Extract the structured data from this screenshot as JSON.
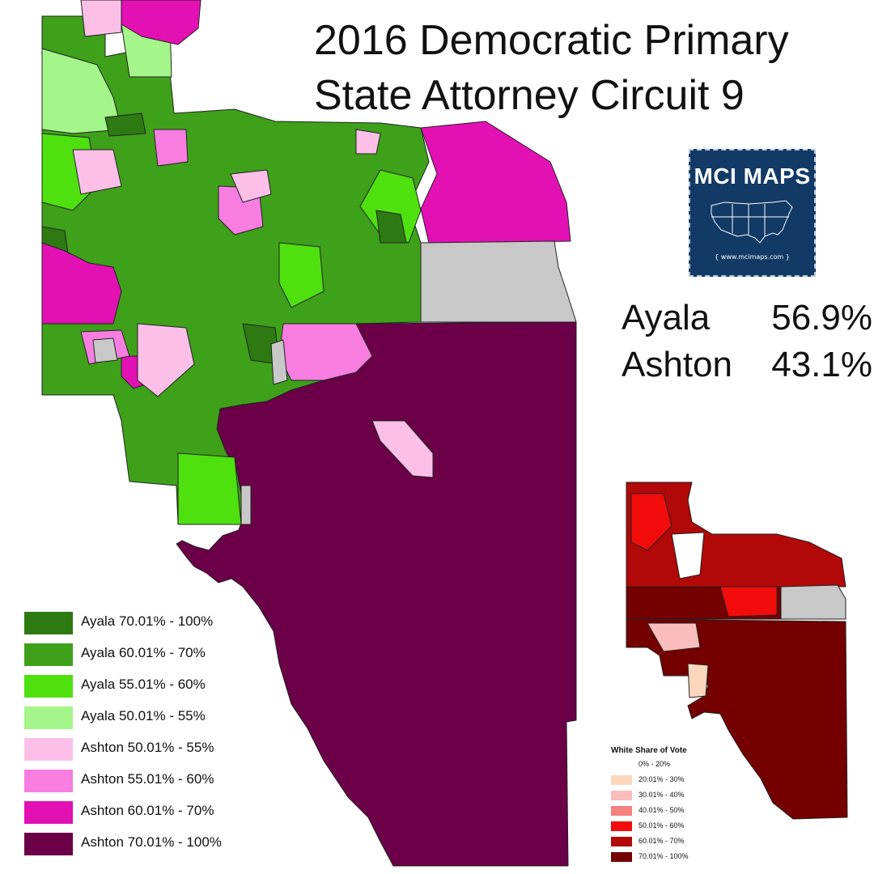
{
  "title": {
    "line1": "2016 Democratic Primary",
    "line2": "State Attorney Circuit 9"
  },
  "logo": {
    "name": "MCI MAPS",
    "url": "www.mcimaps.com",
    "icon": "usa-map-icon"
  },
  "results": [
    {
      "name": "Ayala",
      "pct": "56.9%"
    },
    {
      "name": "Ashton",
      "pct": "43.1%"
    }
  ],
  "legend": [
    {
      "label": "Ayala 70.01% - 100%",
      "color": "#2e7a12"
    },
    {
      "label": "Ayala 60.01% - 70%",
      "color": "#3fa01a"
    },
    {
      "label": "Ayala 55.01% - 60%",
      "color": "#4fe010"
    },
    {
      "label": "Ayala 50.01% - 55%",
      "color": "#a4f58a"
    },
    {
      "label": "Ashton 50.01% - 55%",
      "color": "#fcc0e8"
    },
    {
      "label": "Ashton 55.01% - 60%",
      "color": "#f77ee0"
    },
    {
      "label": "Ashton 60.01% - 70%",
      "color": "#e310b4"
    },
    {
      "label": "Ashton 70.01% - 100%",
      "color": "#6b0048"
    }
  ],
  "mini_legend": {
    "title": "White Share of Vote",
    "items": [
      {
        "label": "0% - 20%",
        "color": "#ffffff"
      },
      {
        "label": "20.01% - 30%",
        "color": "#fcd7bd"
      },
      {
        "label": "30.01% - 40%",
        "color": "#fbbcbc"
      },
      {
        "label": "40.01% - 50%",
        "color": "#f58080"
      },
      {
        "label": "50.01% - 60%",
        "color": "#f20c0c"
      },
      {
        "label": "60.01% - 70%",
        "color": "#b20808"
      },
      {
        "label": "70.01% - 100%",
        "color": "#740000"
      }
    ]
  },
  "colors": {
    "no_data": "#c8c8c8",
    "border": "#222222"
  }
}
